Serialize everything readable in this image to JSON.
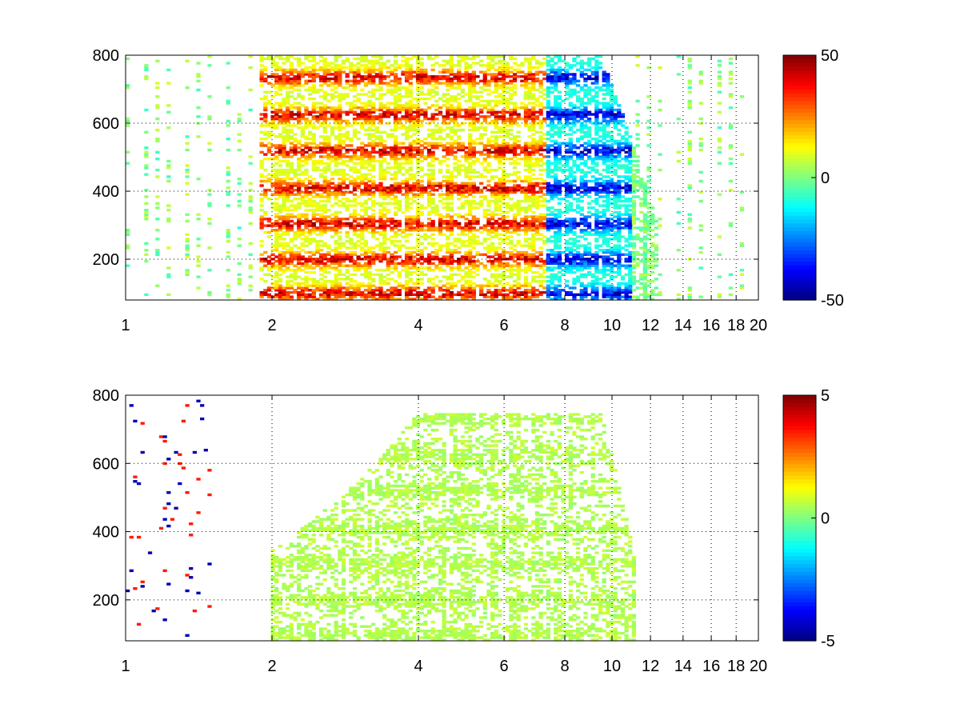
{
  "chart_data": [
    {
      "type": "heatmap",
      "title": "",
      "xlabel": "",
      "ylabel": "",
      "xscale": "log",
      "xlim": [
        1,
        20
      ],
      "ylim": [
        80,
        800
      ],
      "xticks": [
        1,
        2,
        4,
        6,
        8,
        10,
        12,
        14,
        16,
        18,
        20
      ],
      "xtick_labels": [
        "1",
        "2",
        "4",
        "6",
        "8",
        "10",
        "12",
        "14",
        "16",
        "18",
        "20"
      ],
      "yticks": [
        200,
        400,
        600,
        800
      ],
      "ytick_labels": [
        "200",
        "400",
        "600",
        "800"
      ],
      "grid": true,
      "colormap": "jet",
      "clim": [
        -50,
        50
      ],
      "colorbar_ticks": [
        50,
        0,
        -50
      ],
      "colorbar_labels": [
        "50",
        "0",
        "-50"
      ],
      "bands": {
        "y_centers": [
          100,
          200,
          305,
          410,
          520,
          625,
          735
        ],
        "data_region_x": [
          1.9,
          12.5
        ],
        "positive_region_x": [
          2.2,
          7.3
        ],
        "negative_region_x": [
          7.3,
          11.0
        ],
        "peak_value": 50,
        "sparse_scatter_x": [
          11.0,
          20.0
        ]
      }
    },
    {
      "type": "heatmap",
      "title": "",
      "xlabel": "",
      "ylabel": "",
      "xscale": "log",
      "xlim": [
        1,
        20
      ],
      "ylim": [
        80,
        800
      ],
      "xticks": [
        1,
        2,
        4,
        6,
        8,
        10,
        12,
        14,
        16,
        18,
        20
      ],
      "xtick_labels": [
        "1",
        "2",
        "4",
        "6",
        "8",
        "10",
        "12",
        "14",
        "16",
        "18",
        "20"
      ],
      "yticks": [
        200,
        400,
        600,
        800
      ],
      "ytick_labels": [
        "200",
        "400",
        "600",
        "800"
      ],
      "grid": true,
      "colormap": "jet",
      "clim": [
        -5,
        5
      ],
      "colorbar_ticks": [
        5,
        0,
        -5
      ],
      "colorbar_labels": [
        "5",
        "0",
        "-5"
      ],
      "bands": {
        "y_centers": [
          100,
          200,
          305,
          410,
          520,
          625,
          735
        ],
        "data_region_x": [
          2.0,
          11.2
        ],
        "typical_value": 0.5
      }
    }
  ]
}
